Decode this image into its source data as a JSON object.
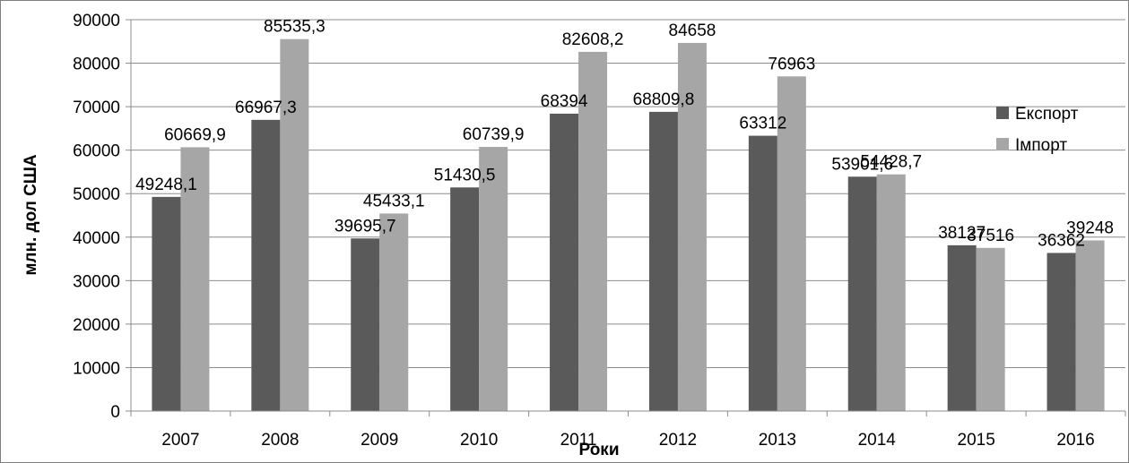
{
  "chart_data": {
    "type": "bar",
    "categories": [
      "2007",
      "2008",
      "2009",
      "2010",
      "2011",
      "2012",
      "2013",
      "2014",
      "2015",
      "2016"
    ],
    "series": [
      {
        "name": "Експорт",
        "color": "#5a5a5a",
        "values": [
          49248.1,
          66967.3,
          39695.7,
          51430.5,
          68394,
          68809.8,
          63312,
          53901.6,
          38127,
          36362
        ],
        "labels": [
          "49248,1",
          "66967,3",
          "39695,7",
          "51430,5",
          "68394",
          "68809,8",
          "63312",
          "53901,6",
          "38127",
          "36362"
        ]
      },
      {
        "name": "Імпорт",
        "color": "#a6a6a6",
        "values": [
          60669.9,
          85535.3,
          45433.1,
          60739.9,
          82608.2,
          84658,
          76963,
          54428.7,
          37516,
          39248
        ],
        "labels": [
          "60669,9",
          "85535,3",
          "45433,1",
          "60739,9",
          "82608,2",
          "84658",
          "76963",
          "54428,7",
          "37516",
          "39248"
        ]
      }
    ],
    "title": "",
    "xlabel": "Роки",
    "ylabel": "млн. дол США",
    "ylim": [
      0,
      90000
    ],
    "yticks": [
      "0",
      "10000",
      "20000",
      "30000",
      "40000",
      "50000",
      "60000",
      "70000",
      "80000",
      "90000"
    ],
    "grid": true,
    "legend_position": "right"
  }
}
